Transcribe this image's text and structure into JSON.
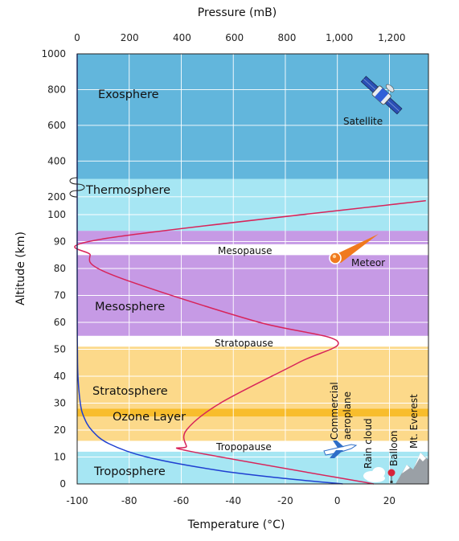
{
  "chart_data": {
    "type": "line",
    "axes": {
      "left": {
        "title": "Altitude (km)",
        "lower_ticks": [
          "0",
          "10",
          "20",
          "30",
          "40",
          "50",
          "60",
          "70",
          "80",
          "90",
          "100"
        ],
        "upper_ticks": [
          "200",
          "400",
          "600",
          "800",
          "1000"
        ]
      },
      "bottom": {
        "title": "Temperature (°C)",
        "ticks": [
          "-100",
          "-80",
          "-60",
          "-40",
          "-20",
          "0",
          "20"
        ],
        "range": [
          -100,
          35
        ]
      },
      "top": {
        "title": "Pressure (mB)",
        "ticks": [
          "0",
          "200",
          "400",
          "600",
          "800",
          "1,000",
          "1,200"
        ],
        "range": [
          0,
          1340
        ]
      }
    },
    "altitude_scale": "two segments: 0-100 km linear, 100-1000 km compressed (axis break shown)",
    "grid": true,
    "bands": [
      {
        "name": "Troposphere",
        "from_km": 0,
        "to_km": 12,
        "color": "#a6e6f3"
      },
      {
        "name": "Tropopause",
        "from_km": 12,
        "to_km": 16,
        "color": "#ffffff"
      },
      {
        "name": "Stratosphere",
        "from_km": 16,
        "to_km": 25,
        "color": "#fcd98a"
      },
      {
        "name": "Ozone Layer",
        "from_km": 25,
        "to_km": 28,
        "color": "#f8bd2c"
      },
      {
        "name": "Stratosphere",
        "from_km": 28,
        "to_km": 51,
        "color": "#fcd98a"
      },
      {
        "name": "Stratopause",
        "from_km": 51,
        "to_km": 55,
        "color": "#ffffff"
      },
      {
        "name": "Mesosphere",
        "from_km": 55,
        "to_km": 85,
        "color": "#c69ae5"
      },
      {
        "name": "Mesopause",
        "from_km": 85,
        "to_km": 89,
        "color": "#ffffff"
      },
      {
        "name": "Mesosphere",
        "from_km": 89,
        "to_km": 94,
        "color": "#c69ae5"
      },
      {
        "name": "Thermosphere",
        "from_km": 94,
        "to_km": 300,
        "color": "#a6e6f3"
      },
      {
        "name": "Exosphere",
        "from_km": 300,
        "to_km": 1000,
        "color": "#62b6dc"
      }
    ],
    "series": [
      {
        "quantity": "temperature",
        "color": "#d8245a",
        "points": [
          {
            "t": 14,
            "alt": 0
          },
          {
            "t": -56,
            "alt": 12
          },
          {
            "t": -58,
            "alt": 14
          },
          {
            "t": -58,
            "alt": 20
          },
          {
            "t": -45,
            "alt": 30
          },
          {
            "t": -15,
            "alt": 45
          },
          {
            "t": 0,
            "alt": 53
          },
          {
            "t": -30,
            "alt": 60
          },
          {
            "t": -70,
            "alt": 72
          },
          {
            "t": -92,
            "alt": 80
          },
          {
            "t": -95,
            "alt": 85
          },
          {
            "t": -90,
            "alt": 91
          },
          {
            "t": 34,
            "alt": 178
          }
        ]
      },
      {
        "quantity": "pressure",
        "color": "#1f3fd1",
        "points": [
          {
            "p": 1013,
            "alt": 0
          },
          {
            "p": 795,
            "alt": 2
          },
          {
            "p": 540,
            "alt": 5
          },
          {
            "p": 265,
            "alt": 10
          },
          {
            "p": 120,
            "alt": 15
          },
          {
            "p": 55,
            "alt": 20
          },
          {
            "p": 25,
            "alt": 25
          },
          {
            "p": 12,
            "alt": 30
          },
          {
            "p": 3,
            "alt": 40
          },
          {
            "p": 1,
            "alt": 50
          },
          {
            "p": 0.3,
            "alt": 60
          },
          {
            "p": 0,
            "alt": 80
          },
          {
            "p": 0,
            "alt": 1000
          }
        ]
      }
    ],
    "annotations": [
      {
        "id": "troposphere",
        "text": "Troposphere"
      },
      {
        "id": "tropopause",
        "text": "Tropopause"
      },
      {
        "id": "stratosphere",
        "text": "Stratosphere"
      },
      {
        "id": "ozone",
        "text": "Ozone Layer"
      },
      {
        "id": "stratopause",
        "text": "Stratopause"
      },
      {
        "id": "mesosphere",
        "text": "Mesosphere"
      },
      {
        "id": "mesopause",
        "text": "Mesopause"
      },
      {
        "id": "thermosphere",
        "text": "Thermosphere"
      },
      {
        "id": "exosphere",
        "text": "Exosphere"
      },
      {
        "id": "satellite",
        "text": "Satellite"
      },
      {
        "id": "meteor",
        "text": "Meteor"
      },
      {
        "id": "commercial",
        "text": "Commercial"
      },
      {
        "id": "aeroplane",
        "text": "aeroplane"
      },
      {
        "id": "rain_cloud",
        "text": "Rain cloud"
      },
      {
        "id": "balloon",
        "text": "Balloon"
      },
      {
        "id": "everest",
        "text": "Mt. Everest"
      }
    ]
  }
}
